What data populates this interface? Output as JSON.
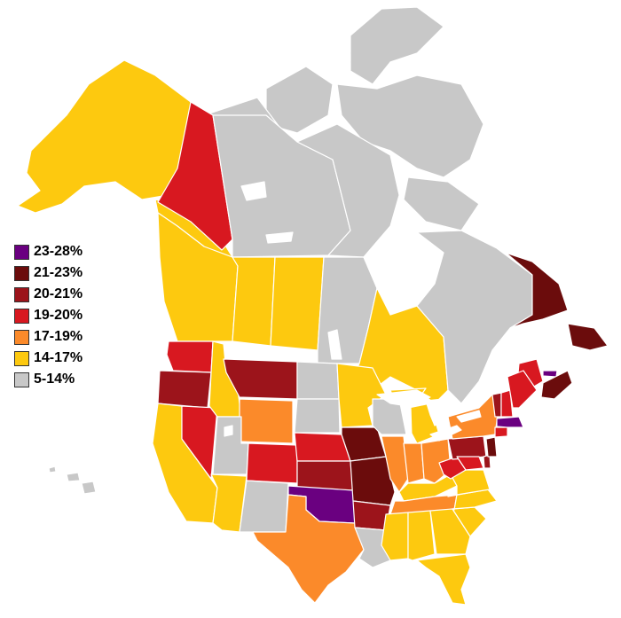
{
  "legend": {
    "items": [
      {
        "label": "23-28%",
        "color": "#6a0080"
      },
      {
        "label": "21-23%",
        "color": "#6b0c0c"
      },
      {
        "label": "20-21%",
        "color": "#9c141b"
      },
      {
        "label": "19-20%",
        "color": "#d81820"
      },
      {
        "label": "17-19%",
        "color": "#fb8a2a"
      },
      {
        "label": "14-17%",
        "color": "#fdc90f"
      },
      {
        "label": "5-14%",
        "color": "#c8c8c8"
      }
    ]
  },
  "regions": {
    "alaska": "14-17%",
    "yukon": "19-20%",
    "northwest-territories": "5-14%",
    "nunavut": "5-14%",
    "british-columbia": "14-17%",
    "alberta": "14-17%",
    "saskatchewan": "14-17%",
    "manitoba": "5-14%",
    "ontario": "14-17%",
    "quebec": "5-14%",
    "newfoundland-labrador": "21-23%",
    "new-brunswick": "19-20%",
    "nova-scotia": "21-23%",
    "prince-edward-island": "23-28%",
    "washington": "19-20%",
    "oregon": "20-21%",
    "california": "14-17%",
    "nevada": "19-20%",
    "idaho": "14-17%",
    "montana": "20-21%",
    "wyoming": "17-19%",
    "utah": "5-14%",
    "arizona": "14-17%",
    "colorado": "19-20%",
    "new-mexico": "5-14%",
    "north-dakota": "5-14%",
    "south-dakota": "5-14%",
    "nebraska": "19-20%",
    "kansas": "20-21%",
    "oklahoma": "23-28%",
    "texas": "17-19%",
    "minnesota": "14-17%",
    "iowa": "21-23%",
    "missouri": "21-23%",
    "arkansas": "20-21%",
    "louisiana": "5-14%",
    "wisconsin": "5-14%",
    "illinois": "17-19%",
    "michigan": "14-17%",
    "indiana": "17-19%",
    "ohio": "17-19%",
    "kentucky": "14-17%",
    "tennessee": "17-19%",
    "mississippi": "14-17%",
    "alabama": "14-17%",
    "georgia": "14-17%",
    "florida": "14-17%",
    "south-carolina": "14-17%",
    "north-carolina": "14-17%",
    "virginia": "14-17%",
    "west-virginia": "19-20%",
    "pennsylvania": "20-21%",
    "new-york": "17-19%",
    "vermont": "20-21%",
    "new-hampshire": "19-20%",
    "maine": "19-20%",
    "massachusetts": "23-28%",
    "connecticut": "19-20%",
    "new-jersey": "21-23%",
    "maryland": "19-20%",
    "delaware": "20-21%",
    "hawaii": "5-14%"
  }
}
